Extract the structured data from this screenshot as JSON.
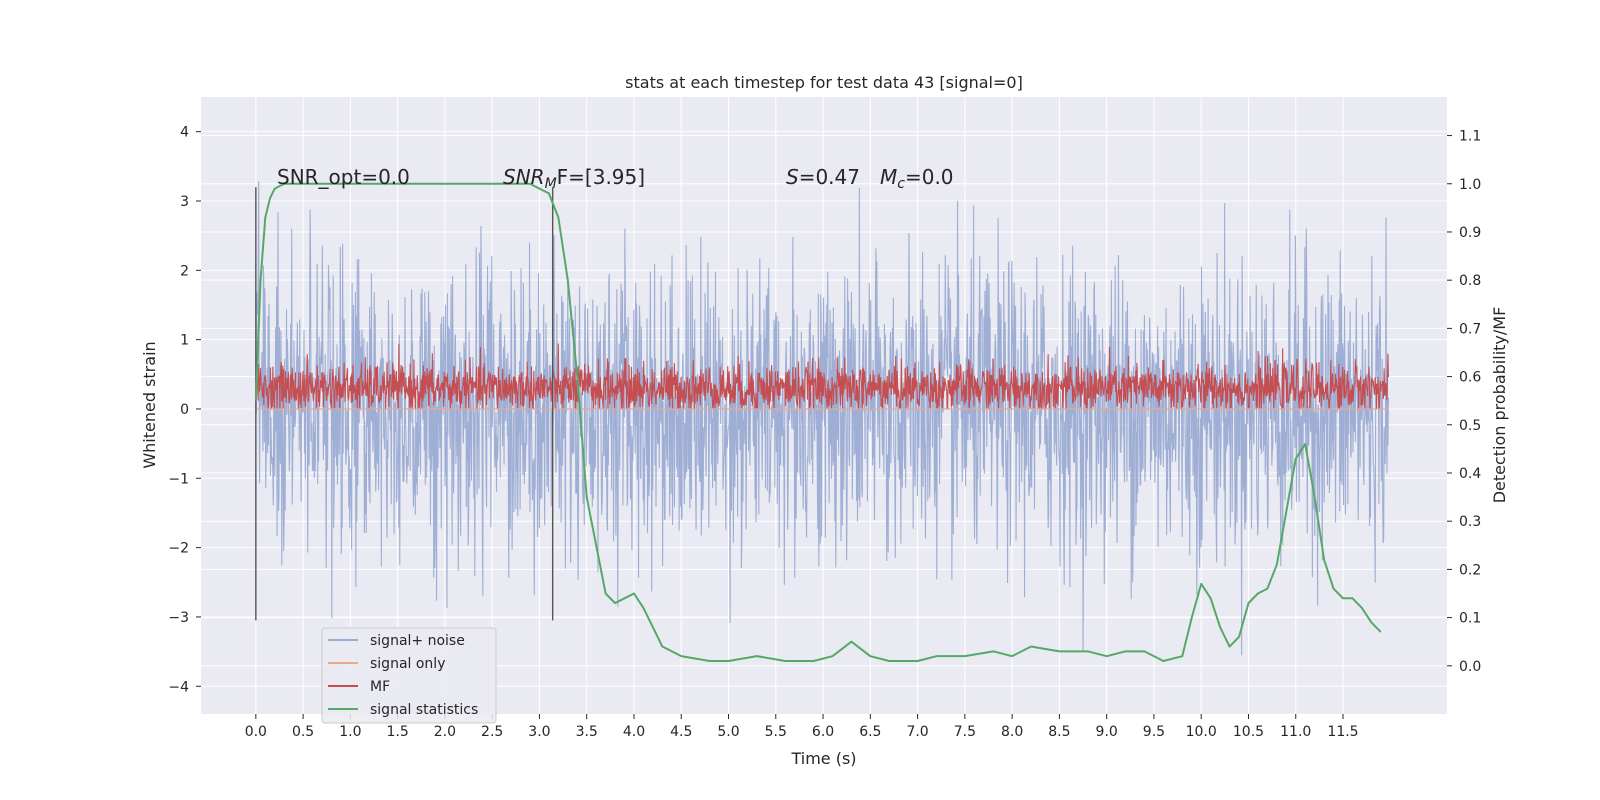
{
  "chart_data": {
    "type": "line",
    "title": "stats at each timestep for test data 43 [signal=0]",
    "xlabel": "Time (s)",
    "ylabel": "Whitened strain",
    "y2label": "Detection probability/MF",
    "xlim": [
      -0.58,
      12.6
    ],
    "ylim": [
      -4.4,
      4.5
    ],
    "y2lim": [
      -0.1,
      1.18
    ],
    "x_ticks": [
      "0.0",
      "0.5",
      "1.0",
      "1.5",
      "2.0",
      "2.5",
      "3.0",
      "3.5",
      "4.0",
      "4.5",
      "5.0",
      "5.5",
      "6.0",
      "6.5",
      "7.0",
      "7.5",
      "8.0",
      "8.5",
      "9.0",
      "9.5",
      "10.0",
      "10.5",
      "11.0",
      "11.5"
    ],
    "y_ticks": [
      "4",
      "3",
      "2",
      "1",
      "0",
      "−1",
      "−2",
      "−3",
      "−4"
    ],
    "y2_ticks": [
      "1.1",
      "1.0",
      "0.9",
      "0.8",
      "0.7",
      "0.6",
      "0.5",
      "0.4",
      "0.3",
      "0.2",
      "0.1",
      "0.0"
    ],
    "grid": true,
    "legend_position": "lower-left",
    "annotations": {
      "snr_opt": "SNR_opt=0.0",
      "snr_mf_sym": "SNR",
      "snr_mf_sub": "M",
      "snr_mf_rest": "F=[3.95]",
      "s_sym": "S",
      "s_rest": "=0.47",
      "mc_sym": "M",
      "mc_sub": "c",
      "mc_rest": "=0.0"
    },
    "vlines_x": [
      0.0,
      3.14
    ],
    "vline_range_y": [
      -3.05,
      3.2
    ],
    "series": [
      {
        "name": "signal+ noise",
        "color": "#9aabd2",
        "axis": "left",
        "description_range": [
          -3.9,
          4.1
        ],
        "x_range": [
          0.0,
          11.98
        ],
        "std_estimate": 1.05
      },
      {
        "name": "signal only",
        "color": "#eba98e",
        "axis": "left",
        "values_constant": 0.0
      },
      {
        "name": "MF",
        "color": "#c44e52",
        "axis": "left",
        "x_range": [
          0.0,
          11.98
        ],
        "range": [
          0.0,
          1.0
        ]
      },
      {
        "name": "signal statistics",
        "color": "#55a868",
        "axis": "right",
        "x": [
          0.0,
          0.05,
          0.1,
          0.15,
          0.2,
          0.3,
          0.5,
          1.0,
          1.5,
          2.0,
          2.5,
          2.9,
          3.0,
          3.1,
          3.2,
          3.3,
          3.4,
          3.5,
          3.6,
          3.7,
          3.8,
          3.9,
          4.0,
          4.1,
          4.2,
          4.3,
          4.5,
          4.8,
          5.0,
          5.3,
          5.6,
          5.9,
          6.1,
          6.3,
          6.5,
          6.7,
          7.0,
          7.2,
          7.5,
          7.8,
          8.0,
          8.2,
          8.5,
          8.8,
          9.0,
          9.2,
          9.4,
          9.6,
          9.8,
          9.9,
          10.0,
          10.1,
          10.2,
          10.3,
          10.4,
          10.5,
          10.6,
          10.7,
          10.8,
          10.9,
          11.0,
          11.1,
          11.2,
          11.3,
          11.4,
          11.5,
          11.6,
          11.7,
          11.8,
          11.9
        ],
        "values": [
          0.55,
          0.8,
          0.93,
          0.97,
          0.99,
          1.0,
          1.0,
          1.0,
          1.0,
          1.0,
          1.0,
          1.0,
          0.99,
          0.98,
          0.93,
          0.8,
          0.6,
          0.35,
          0.25,
          0.15,
          0.13,
          0.14,
          0.15,
          0.12,
          0.08,
          0.04,
          0.02,
          0.01,
          0.01,
          0.02,
          0.01,
          0.01,
          0.02,
          0.05,
          0.02,
          0.01,
          0.01,
          0.02,
          0.02,
          0.03,
          0.02,
          0.04,
          0.03,
          0.03,
          0.02,
          0.03,
          0.03,
          0.01,
          0.02,
          0.1,
          0.17,
          0.14,
          0.08,
          0.04,
          0.06,
          0.13,
          0.15,
          0.16,
          0.21,
          0.32,
          0.43,
          0.46,
          0.35,
          0.22,
          0.16,
          0.14,
          0.14,
          0.12,
          0.09,
          0.07
        ]
      }
    ]
  }
}
